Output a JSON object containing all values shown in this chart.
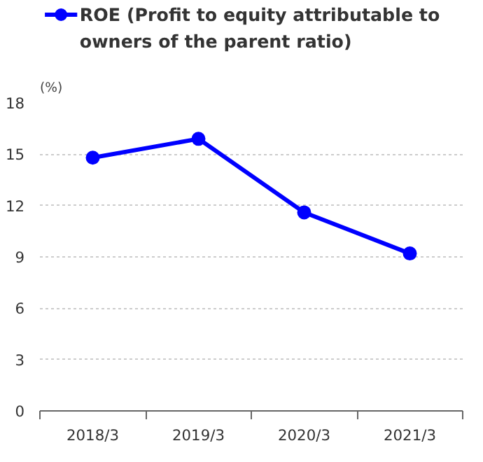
{
  "chart_data": {
    "type": "line",
    "ylabel": "(%)",
    "categories": [
      "2018/3",
      "2019/3",
      "2020/3",
      "2021/3"
    ],
    "series": [
      {
        "name": "ROE (Profit to equity attributable to owners of the parent ratio)",
        "color": "#0000ff",
        "values": [
          14.8,
          15.9,
          11.6,
          9.2
        ]
      }
    ],
    "ylim": [
      0,
      18
    ],
    "yticks": [
      0,
      3,
      6,
      9,
      12,
      15,
      18
    ],
    "grid": "y",
    "legend": "top",
    "marker": "circle",
    "line_style": "solid"
  }
}
